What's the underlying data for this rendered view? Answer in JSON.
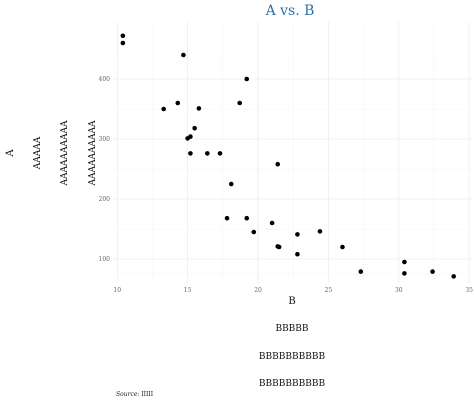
{
  "chart_data": {
    "type": "scatter",
    "title": "A vs. B",
    "xlabel": "B",
    "ylabel": "A",
    "extra_xlabels": [
      "BBBBB",
      "BBBBBBBBBB",
      "BBBBBBBBBB"
    ],
    "extra_ylabels": [
      "AAAAA",
      "AAAAAAAAAA",
      "AAAAAAAAAA"
    ],
    "caption_label": "Source:",
    "caption_value": "IIIII",
    "x_ticks": [
      10,
      15,
      20,
      25,
      30,
      35
    ],
    "y_ticks": [
      100,
      200,
      300,
      400
    ],
    "xlim": [
      9.7,
      35.2
    ],
    "ylim": [
      60,
      495
    ],
    "grid": true,
    "colors": {
      "title": "#2f6fa3",
      "points": "#000000",
      "grid": "#ebebeb"
    },
    "points": [
      {
        "x": 10.4,
        "y": 472
      },
      {
        "x": 10.4,
        "y": 460
      },
      {
        "x": 14.7,
        "y": 440
      },
      {
        "x": 19.2,
        "y": 400
      },
      {
        "x": 13.3,
        "y": 350
      },
      {
        "x": 14.3,
        "y": 360
      },
      {
        "x": 15.8,
        "y": 351
      },
      {
        "x": 18.7,
        "y": 360
      },
      {
        "x": 15.5,
        "y": 318
      },
      {
        "x": 15.2,
        "y": 304
      },
      {
        "x": 15.0,
        "y": 301
      },
      {
        "x": 15.2,
        "y": 276
      },
      {
        "x": 16.4,
        "y": 276
      },
      {
        "x": 17.3,
        "y": 276
      },
      {
        "x": 21.4,
        "y": 258
      },
      {
        "x": 18.1,
        "y": 225
      },
      {
        "x": 17.8,
        "y": 168
      },
      {
        "x": 19.2,
        "y": 168
      },
      {
        "x": 21.0,
        "y": 160
      },
      {
        "x": 19.7,
        "y": 145
      },
      {
        "x": 24.4,
        "y": 146
      },
      {
        "x": 22.8,
        "y": 141
      },
      {
        "x": 21.4,
        "y": 121
      },
      {
        "x": 21.5,
        "y": 120
      },
      {
        "x": 26.0,
        "y": 120
      },
      {
        "x": 22.8,
        "y": 108
      },
      {
        "x": 30.4,
        "y": 95
      },
      {
        "x": 27.3,
        "y": 79
      },
      {
        "x": 30.4,
        "y": 76
      },
      {
        "x": 32.4,
        "y": 79
      },
      {
        "x": 33.9,
        "y": 71
      }
    ]
  }
}
